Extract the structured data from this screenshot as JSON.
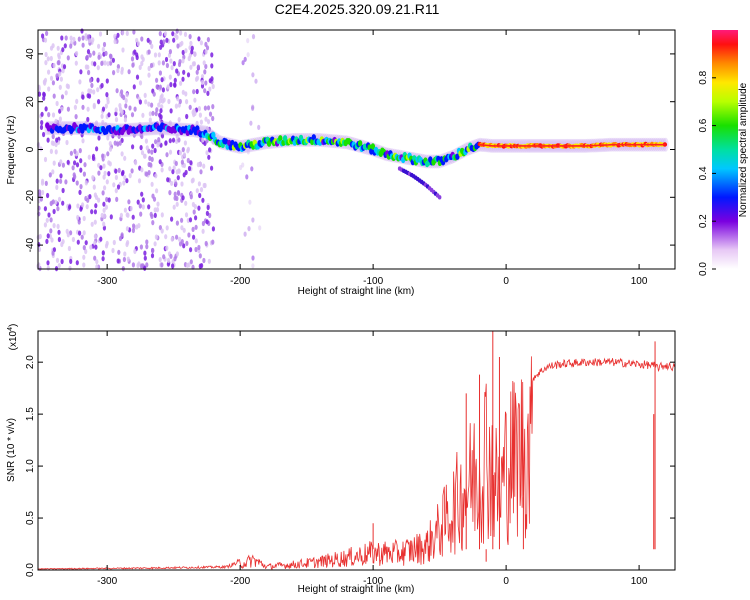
{
  "title": "C2E4.2025.320.09.21.R11",
  "chart_data": [
    {
      "type": "heatmap",
      "name": "spectrogram",
      "xlabel": "Height of straight line (km)",
      "ylabel": "Frequency (Hz)",
      "xlim": [
        -352,
        127
      ],
      "ylim": [
        -50,
        50
      ],
      "x_ticks": [
        -300,
        -200,
        -100,
        0,
        100
      ],
      "y_ticks": [
        -40,
        -20,
        0,
        20,
        40
      ],
      "colorbar": {
        "label": "Normalized spectral amplitude",
        "range": [
          0,
          1
        ],
        "ticks": [
          "0.0",
          "0.2",
          "0.4",
          "0.6",
          "0.8"
        ],
        "tick_values": [
          0.0,
          0.2,
          0.4,
          0.6,
          0.8
        ]
      },
      "ridge": {
        "x": [
          -345,
          -320,
          -290,
          -260,
          -235,
          -225,
          -215,
          -200,
          -180,
          -160,
          -140,
          -120,
          -100,
          -90,
          -80,
          -70,
          -60,
          -50,
          -40,
          -30,
          -20,
          -10,
          0,
          20,
          40,
          60,
          80,
          100,
          120
        ],
        "y": [
          9,
          9,
          8,
          9,
          8,
          7,
          3,
          1,
          3,
          4,
          4,
          3,
          0,
          -2,
          -3,
          -4,
          -5,
          -5,
          -3,
          0,
          2,
          1.5,
          1.5,
          1.5,
          1.5,
          1.5,
          2,
          2,
          2
        ]
      },
      "noise_regions": [
        {
          "x_start": -352,
          "x_end": -220
        },
        {
          "x_start": -200,
          "x_end": -185
        }
      ],
      "branch": {
        "x": [
          -80,
          -70,
          -60,
          -50
        ],
        "y": [
          -8,
          -11,
          -15,
          -20
        ]
      }
    },
    {
      "type": "line",
      "name": "snr",
      "xlabel": "Height of straight line (km)",
      "ylabel": "SNR (10 * v/v)",
      "scale_label": "(x10",
      "scale_exponent": "4",
      "xlim": [
        -352,
        127
      ],
      "ylim": [
        0,
        2.3
      ],
      "x_ticks": [
        -300,
        -200,
        -100,
        0,
        100
      ],
      "y_ticks": [
        "0.0",
        "0.5",
        "1.0",
        "1.5",
        "2.0"
      ],
      "y_tick_values": [
        0.0,
        0.5,
        1.0,
        1.5,
        2.0
      ],
      "color": "#e8302f",
      "envelope": {
        "x": [
          -352,
          -260,
          -210,
          -200,
          -190,
          -180,
          -160,
          -140,
          -120,
          -100,
          -80,
          -60,
          -50,
          -40,
          -30,
          -20,
          -15,
          -10,
          -5,
          0,
          10,
          20,
          30,
          40,
          60,
          80,
          100,
          110,
          115,
          120,
          127
        ],
        "y": [
          0.01,
          0.02,
          0.03,
          0.08,
          0.15,
          0.05,
          0.08,
          0.12,
          0.18,
          0.25,
          0.25,
          0.35,
          0.6,
          0.9,
          1.2,
          1.5,
          1.8,
          1.4,
          1.1,
          1.55,
          1.75,
          1.85,
          1.95,
          1.98,
          2.0,
          2.0,
          1.98,
          1.97,
          1.95,
          1.97,
          1.95
        ]
      },
      "spikes": [
        {
          "x": -10,
          "y": 2.3
        },
        {
          "x": -5,
          "y": 2.05
        },
        {
          "x": 112,
          "y": 2.2
        },
        {
          "x": 111,
          "y": 1.5
        },
        {
          "x": -100,
          "y": 0.45
        },
        {
          "x": -20,
          "y": 1.88
        },
        {
          "x": -30,
          "y": 1.7
        },
        {
          "x": 13,
          "y": 0.7
        },
        {
          "x": -15,
          "y": 0.08
        }
      ]
    }
  ]
}
